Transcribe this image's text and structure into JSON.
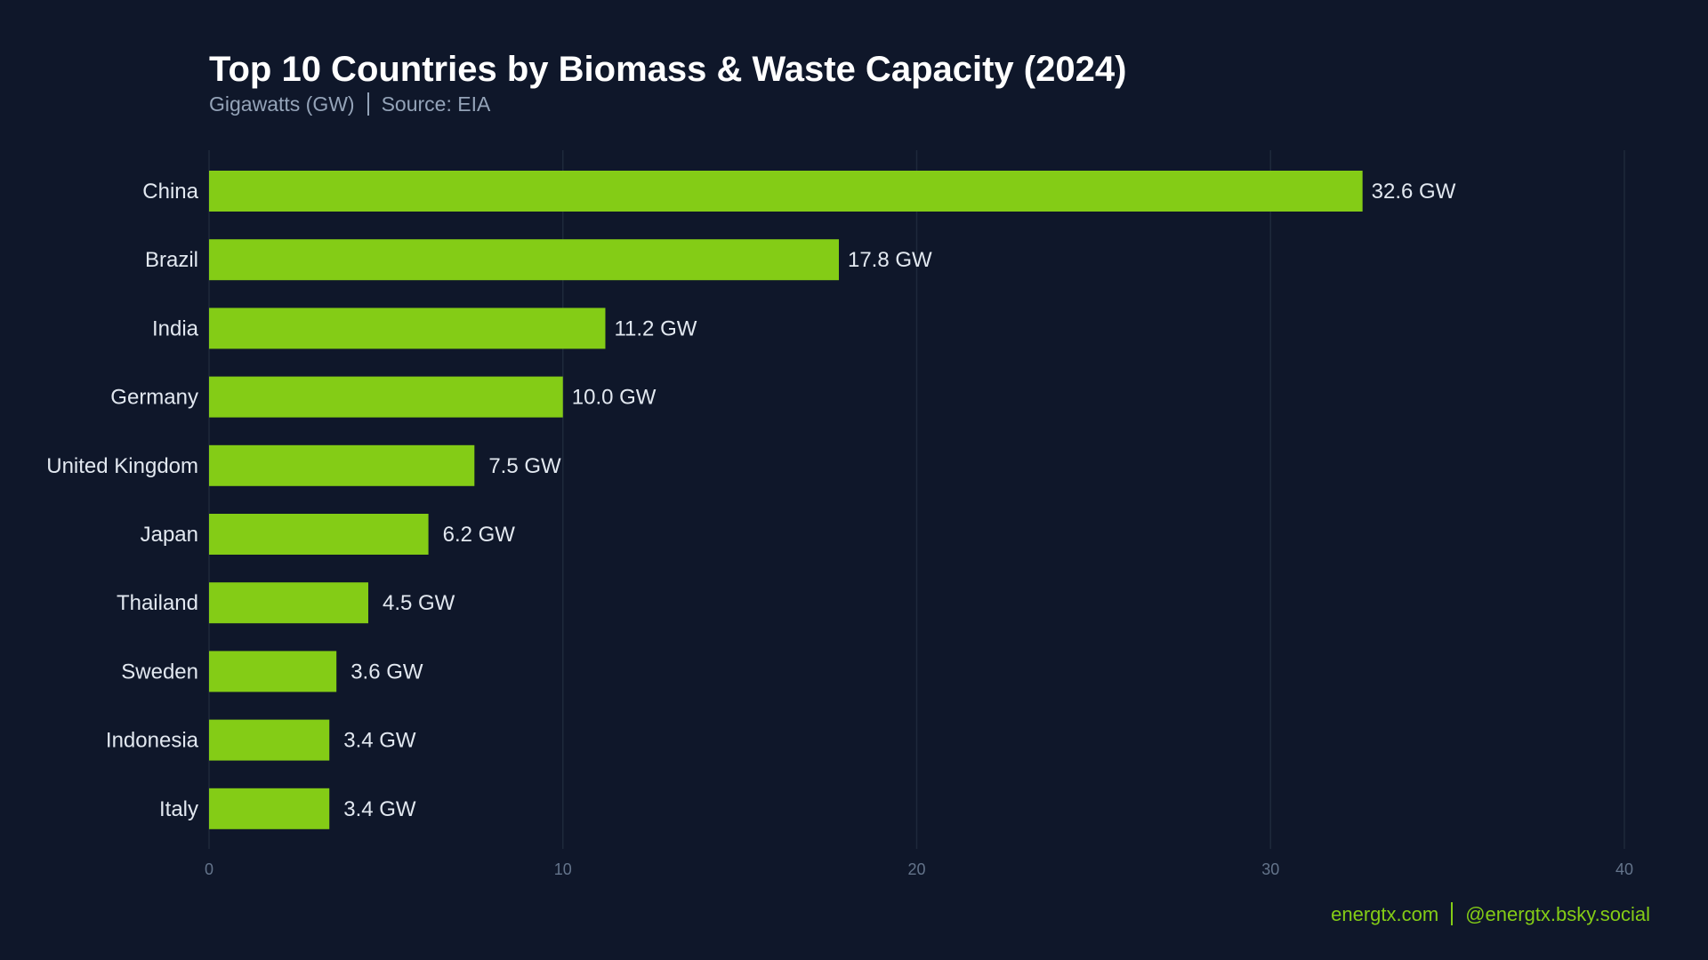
{
  "chart_data": {
    "type": "bar",
    "orientation": "horizontal",
    "title": "Top 10 Countries by Biomass & Waste Capacity (2024)",
    "subtitle_unit": "Gigawatts (GW)",
    "subtitle_source": "Source: EIA",
    "categories": [
      "China",
      "Brazil",
      "India",
      "Germany",
      "United Kingdom",
      "Japan",
      "Thailand",
      "Sweden",
      "Indonesia",
      "Italy"
    ],
    "values": [
      32.6,
      17.8,
      11.2,
      10.0,
      7.5,
      6.2,
      4.5,
      3.6,
      3.4,
      3.4
    ],
    "data_labels": [
      "32.6 GW",
      "17.8 GW",
      "11.2 GW",
      "10.0 GW",
      "7.5 GW",
      "6.2 GW",
      "4.5 GW",
      "3.6 GW",
      "3.4 GW",
      "3.4 GW"
    ],
    "xlim": [
      0,
      40
    ],
    "x_ticks": [
      "0",
      "10",
      "20",
      "30",
      "40"
    ],
    "grid": "vertical",
    "xlabel": "",
    "ylabel": "",
    "colors": {
      "bar": "#84cc16",
      "background": "#0f172a",
      "grid": "#1e293b",
      "text": "#e2e8f0",
      "tick": "#64748b"
    }
  },
  "footer": {
    "website": "energtx.com",
    "social": "@energtx.bsky.social"
  }
}
